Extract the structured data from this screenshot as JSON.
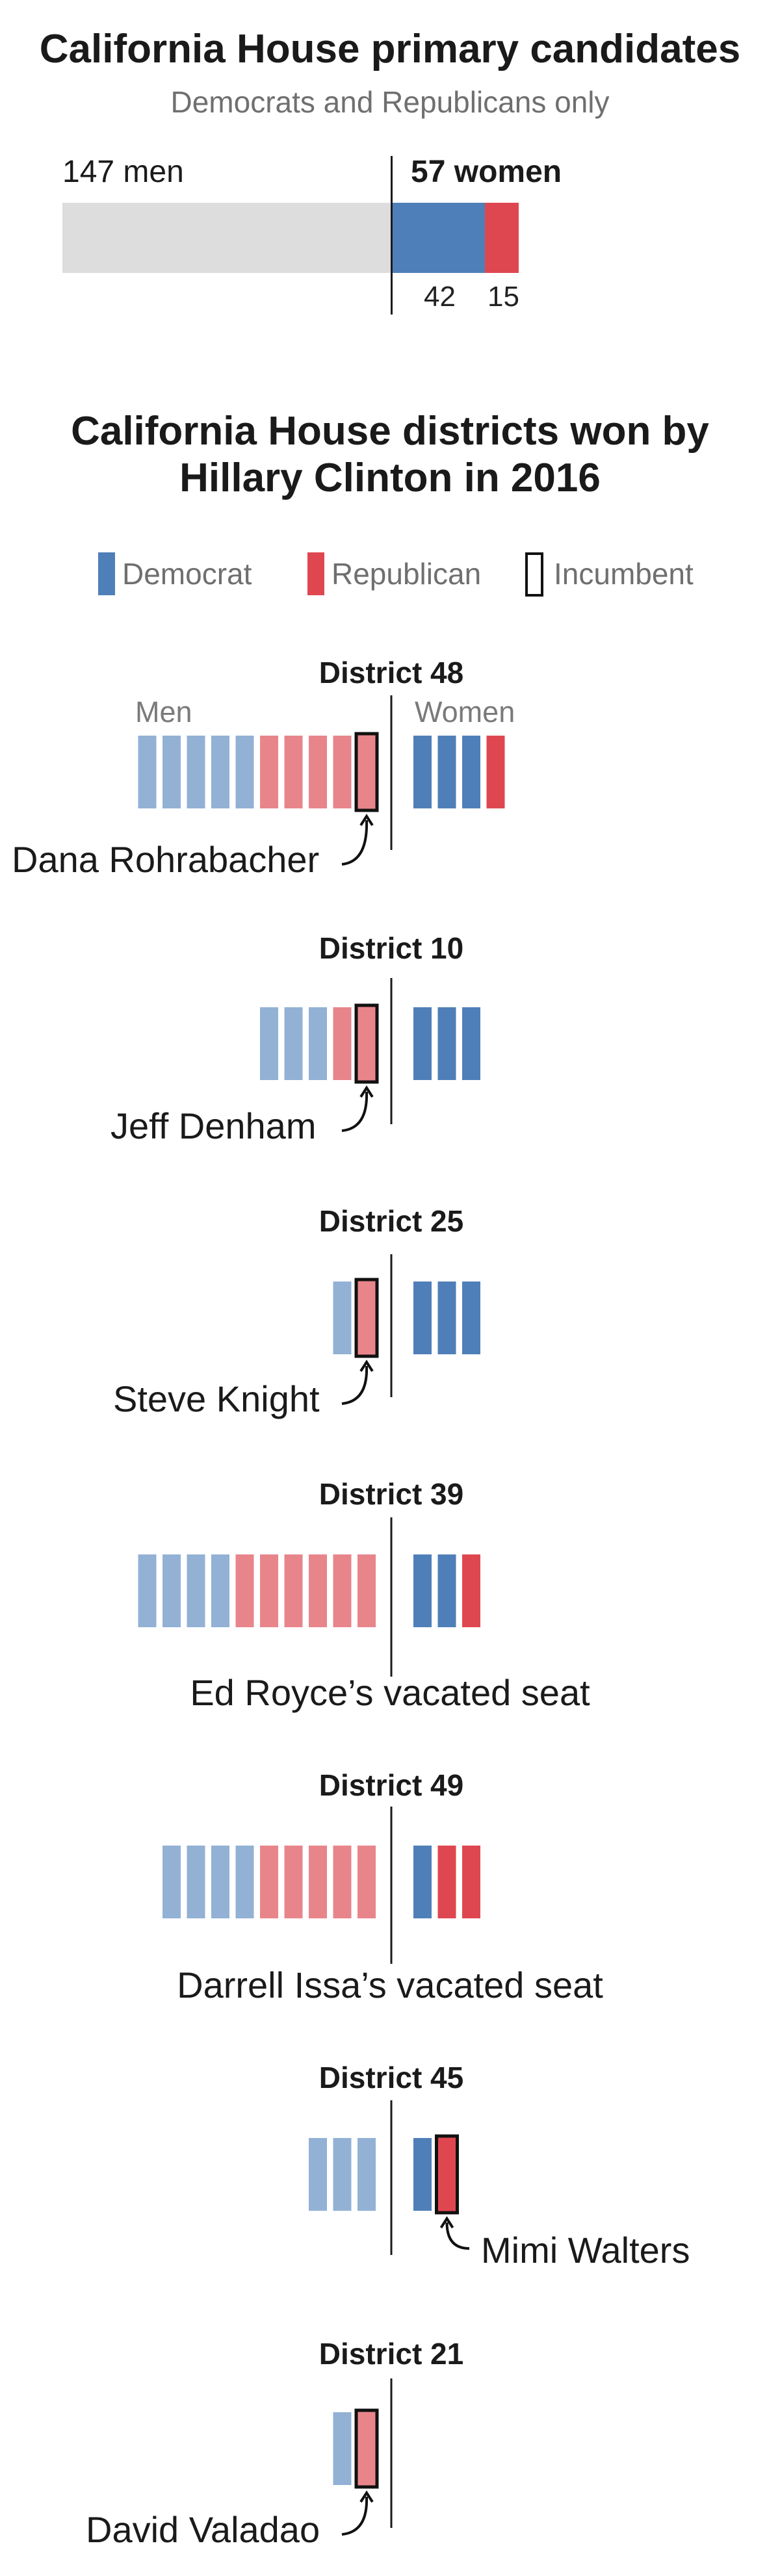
{
  "colors": {
    "democrat_men": "#92b1d5",
    "democrat_women": "#4f7fb8",
    "republican_men": "#e8858b",
    "republican_women": "#df4750",
    "gray_bar": "#dddddd",
    "text": "#1a1a1a",
    "muted": "#6f6f6f"
  },
  "header": {
    "title": "California House primary candidates",
    "subtitle": "Democrats and Republicans only"
  },
  "summary": {
    "men_label": "147 men",
    "women_label": "57 women",
    "dem_women_label": "42",
    "rep_women_label": "15"
  },
  "section": {
    "title_line1": "California House districts won by",
    "title_line2": "Hillary Clinton in 2016"
  },
  "legend": {
    "democrat": "Democrat",
    "republican": "Republican",
    "incumbent": "Incumbent"
  },
  "labels": {
    "men": "Men",
    "women": "Women"
  },
  "chart_data": [
    {
      "type": "bar",
      "title": "California House primary candidates",
      "subtitle": "Democrats and Republicans only",
      "categories": [
        "men",
        "women (Democrat)",
        "women (Republican)"
      ],
      "values": [
        147,
        42,
        15
      ]
    },
    {
      "type": "table",
      "title": "California House districts won by Hillary Clinton in 2016",
      "districts": [
        {
          "name": "District 48",
          "annotation": "Dana Rohrabacher",
          "men": [
            "D",
            "D",
            "D",
            "D",
            "D",
            "R",
            "R",
            "R",
            "R",
            "R*"
          ],
          "women": [
            "D",
            "D",
            "D",
            "R"
          ]
        },
        {
          "name": "District 10",
          "annotation": "Jeff Denham",
          "men": [
            "D",
            "D",
            "D",
            "R",
            "R*"
          ],
          "women": [
            "D",
            "D",
            "D"
          ]
        },
        {
          "name": "District 25",
          "annotation": "Steve Knight",
          "men": [
            "D",
            "R*"
          ],
          "women": [
            "D",
            "D",
            "D"
          ]
        },
        {
          "name": "District 39",
          "annotation": "Ed Royce’s vacated seat",
          "men": [
            "D",
            "D",
            "D",
            "D",
            "R",
            "R",
            "R",
            "R",
            "R",
            "R"
          ],
          "women": [
            "D",
            "D",
            "R"
          ]
        },
        {
          "name": "District 49",
          "annotation": "Darrell Issa’s vacated seat",
          "men": [
            "D",
            "D",
            "D",
            "D",
            "R",
            "R",
            "R",
            "R",
            "R"
          ],
          "women": [
            "D",
            "R",
            "R"
          ]
        },
        {
          "name": "District 45",
          "annotation": "Mimi Walters",
          "men": [
            "D",
            "D",
            "D"
          ],
          "women": [
            "D",
            "R*"
          ]
        },
        {
          "name": "District 21",
          "annotation": "David Valadao",
          "men": [
            "D",
            "R*"
          ],
          "women": []
        }
      ]
    }
  ]
}
